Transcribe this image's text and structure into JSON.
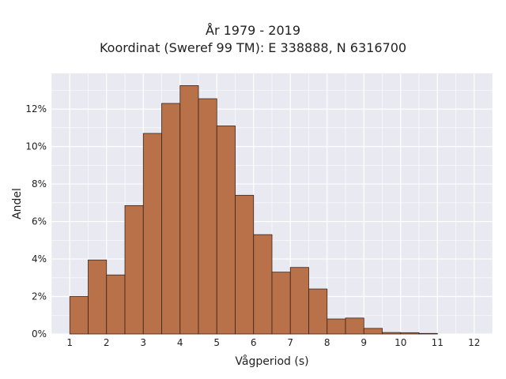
{
  "chart_data": {
    "type": "bar",
    "title": "År 1979 - 2019",
    "subtitle": "Koordinat (Sweref 99 TM): E 338888, N 6316700",
    "xlabel": "Vågperiod (s)",
    "ylabel": "Andel",
    "xlim": [
      0.5,
      12.5
    ],
    "ylim": [
      0,
      13.9
    ],
    "x_ticks": [
      1,
      2,
      3,
      4,
      5,
      6,
      7,
      8,
      9,
      10,
      11,
      12
    ],
    "y_ticks": [
      0,
      2,
      4,
      6,
      8,
      10,
      12
    ],
    "y_tick_suffix": "%",
    "grid": true,
    "bin_width": 0.5,
    "bin_starts": [
      1,
      1.5,
      2,
      2.5,
      3,
      3.5,
      4,
      4.5,
      5,
      5.5,
      6,
      6.5,
      7,
      7.5,
      8,
      8.5,
      9,
      9.5,
      10,
      10.5
    ],
    "values": [
      2.0,
      3.95,
      3.15,
      6.85,
      10.7,
      12.3,
      13.25,
      12.55,
      11.1,
      7.4,
      5.3,
      3.3,
      3.55,
      2.4,
      0.8,
      0.85,
      0.3,
      0.08,
      0.07,
      0.03
    ],
    "colors": {
      "bar_fill": "#b9714a",
      "bar_edge": "#3a2418",
      "plot_bg": "#e9e9f2",
      "grid": "#ffffff"
    }
  }
}
